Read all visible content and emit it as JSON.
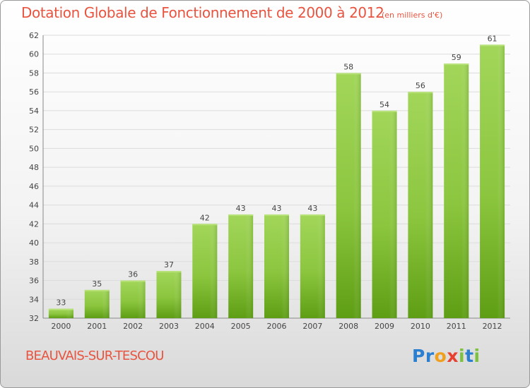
{
  "chart_data": {
    "type": "bar",
    "title": "Dotation Globale de Fonctionnement de 2000 à 2012",
    "subtitle": "(en milliers d'€)",
    "categories": [
      "2000",
      "2001",
      "2002",
      "2003",
      "2004",
      "2005",
      "2006",
      "2007",
      "2008",
      "2009",
      "2010",
      "2011",
      "2012"
    ],
    "values": [
      33,
      35,
      36,
      37,
      42,
      43,
      43,
      43,
      58,
      54,
      56,
      59,
      61
    ],
    "ylim": [
      32,
      62
    ],
    "yticks": [
      32,
      34,
      36,
      38,
      40,
      42,
      44,
      46,
      48,
      50,
      52,
      54,
      56,
      58,
      60,
      62
    ],
    "grid": true,
    "bar_color": "#8cc63f",
    "bar_color_dark": "#5e9e14",
    "xlabel": "",
    "ylabel": ""
  },
  "footer": {
    "commune": "BEAUVAIS-SUR-TESCOU",
    "logo_letters": [
      {
        "char": "P",
        "color": "#2a7fd0"
      },
      {
        "char": "r",
        "color": "#2a7fd0"
      },
      {
        "char": "o",
        "color": "#f0a020"
      },
      {
        "char": "x",
        "color": "#e8402f"
      },
      {
        "char": "i",
        "color": "#7dc23f"
      },
      {
        "char": "t",
        "color": "#2a7fd0"
      },
      {
        "char": "i",
        "color": "#7dc23f"
      }
    ]
  },
  "colors": {
    "title": "#e8543f",
    "axis_text": "#444444",
    "grid": "#dcdcdc"
  }
}
